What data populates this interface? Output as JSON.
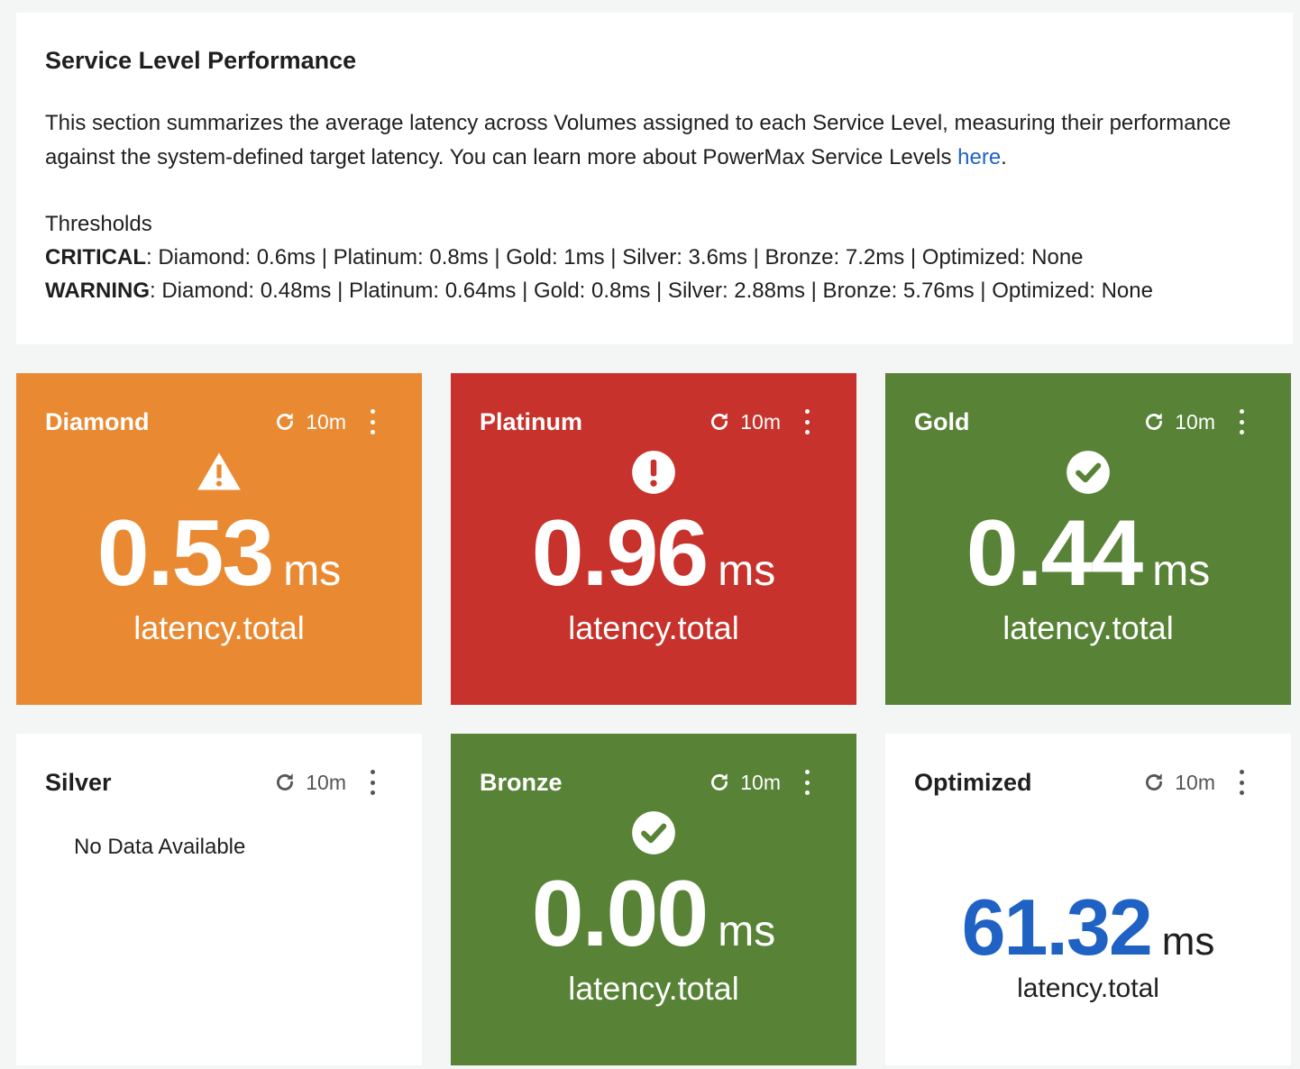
{
  "section": {
    "title": "Service Level Performance",
    "description_before_link": "This section summarizes the average latency across Volumes assigned to each Service Level, measuring their performance against the system-defined target latency. You can learn more about PowerMax Service Levels ",
    "link_text": "here",
    "description_after_link": ".",
    "thresholds_label": "Thresholds",
    "critical_label": "CRITICAL",
    "critical_values": ": Diamond: 0.6ms | Platinum: 0.8ms | Gold: 1ms | Silver: 3.6ms | Bronze: 7.2ms | Optimized: None",
    "warning_label": "WARNING",
    "warning_values": ": Diamond: 0.48ms | Platinum: 0.64ms | Gold: 0.8ms | Silver: 2.88ms | Bronze: 5.76ms | Optimized: None"
  },
  "tiles": [
    {
      "title": "Diamond",
      "refresh": "10m",
      "status": "warning",
      "value": "0.53",
      "unit": "ms",
      "metric": "latency.total",
      "color": "#e98a33"
    },
    {
      "title": "Platinum",
      "refresh": "10m",
      "status": "critical",
      "value": "0.96",
      "unit": "ms",
      "metric": "latency.total",
      "color": "#c8322c"
    },
    {
      "title": "Gold",
      "refresh": "10m",
      "status": "ok",
      "value": "0.44",
      "unit": "ms",
      "metric": "latency.total",
      "color": "#588236"
    },
    {
      "title": "Silver",
      "refresh": "10m",
      "status": "none",
      "message": "No Data Available",
      "color": "#ffffff"
    },
    {
      "title": "Bronze",
      "refresh": "10m",
      "status": "ok",
      "value": "0.00",
      "unit": "ms",
      "metric": "latency.total",
      "color": "#588236"
    },
    {
      "title": "Optimized",
      "refresh": "10m",
      "status": "none",
      "value": "61.32",
      "unit": "ms",
      "metric": "latency.total",
      "color": "#ffffff",
      "value_color": "#1f62c4"
    }
  ]
}
